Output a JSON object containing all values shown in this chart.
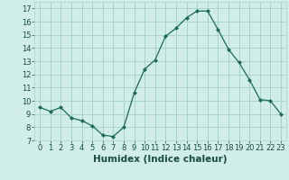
{
  "x": [
    0,
    1,
    2,
    3,
    4,
    5,
    6,
    7,
    8,
    9,
    10,
    11,
    12,
    13,
    14,
    15,
    16,
    17,
    18,
    19,
    20,
    21,
    22,
    23
  ],
  "y": [
    9.5,
    9.2,
    9.5,
    8.7,
    8.5,
    8.1,
    7.4,
    7.3,
    8.0,
    10.6,
    12.4,
    13.1,
    14.9,
    15.5,
    16.3,
    16.8,
    16.8,
    15.4,
    13.9,
    12.9,
    11.6,
    10.1,
    10.0,
    9.0
  ],
  "line_color": "#1a6b5a",
  "marker": "D",
  "marker_size": 2.0,
  "background_color": "#d0ede8",
  "grid_color": "#aad4c8",
  "xlabel": "Humidex (Indice chaleur)",
  "xlim": [
    -0.5,
    23.5
  ],
  "ylim": [
    7,
    17.5
  ],
  "yticks": [
    7,
    8,
    9,
    10,
    11,
    12,
    13,
    14,
    15,
    16,
    17
  ],
  "xticks": [
    0,
    1,
    2,
    3,
    4,
    5,
    6,
    7,
    8,
    9,
    10,
    11,
    12,
    13,
    14,
    15,
    16,
    17,
    18,
    19,
    20,
    21,
    22,
    23
  ],
  "tick_fontsize": 6.0,
  "xlabel_fontsize": 7.5
}
